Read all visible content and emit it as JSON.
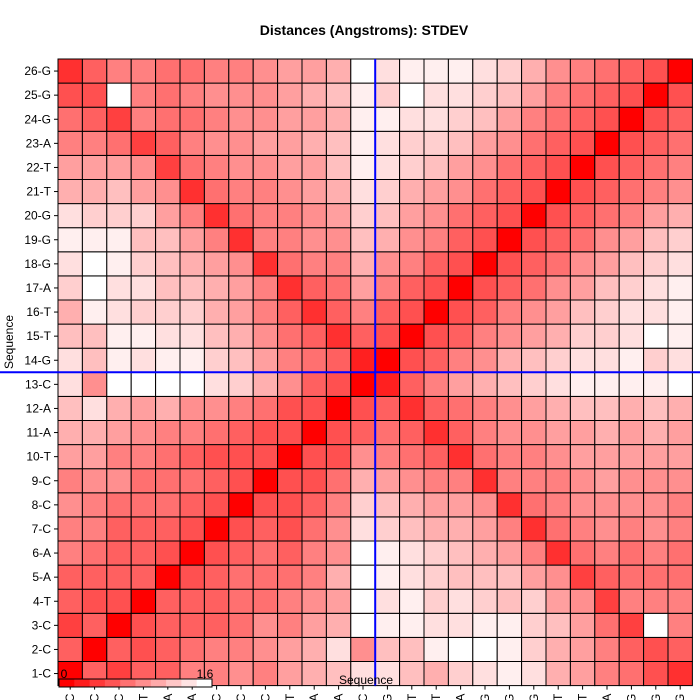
{
  "chart_data": {
    "type": "heatmap",
    "title": "Distances (Angstroms):  STDEV",
    "xlabel": "Sequence",
    "ylabel": "Sequence",
    "labels": [
      "1-C",
      "2-C",
      "3-C",
      "4-T",
      "5-A",
      "6-A",
      "7-C",
      "8-C",
      "9-C",
      "10-T",
      "11-A",
      "12-A",
      "13-C",
      "14-G",
      "15-T",
      "16-T",
      "17-A",
      "18-G",
      "19-G",
      "20-G",
      "21-T",
      "22-T",
      "23-A",
      "24-G",
      "25-G",
      "26-G"
    ],
    "scale": {
      "min": 0,
      "max": 1.6,
      "min_label": "0",
      "max_label": "1.6"
    },
    "colors": {
      "low": "#ff0000",
      "high": "#ffffff",
      "cell_border": "#000000",
      "crosshair": "#0000ff"
    },
    "crosshair": {
      "row": "13-C",
      "column": "13-C"
    },
    "values": [
      [
        0.0,
        0.6,
        0.4,
        0.6,
        0.6,
        0.8,
        0.8,
        0.9,
        0.8,
        1.0,
        1.1,
        1.2,
        1.4,
        1.4,
        1.2,
        1.1,
        1.3,
        1.4,
        1.5,
        1.4,
        1.1,
        1.0,
        0.8,
        0.7,
        0.5,
        0.3
      ],
      [
        0.6,
        0.0,
        0.6,
        0.5,
        0.6,
        0.7,
        0.8,
        0.8,
        0.9,
        1.0,
        1.1,
        1.4,
        0.9,
        1.2,
        1.2,
        1.5,
        1.6,
        1.6,
        1.5,
        1.3,
        1.1,
        1.0,
        0.8,
        0.6,
        0.5,
        0.6
      ],
      [
        0.4,
        0.6,
        0.0,
        0.5,
        0.6,
        0.6,
        0.6,
        0.7,
        0.9,
        0.8,
        1.0,
        1.1,
        1.6,
        1.5,
        1.5,
        1.4,
        1.4,
        1.5,
        1.5,
        1.3,
        1.2,
        1.0,
        0.7,
        0.4,
        1.6,
        0.8
      ],
      [
        0.6,
        0.5,
        0.5,
        0.0,
        0.6,
        0.6,
        0.6,
        0.7,
        0.7,
        0.8,
        0.9,
        1.0,
        1.6,
        1.4,
        1.5,
        1.3,
        1.4,
        1.3,
        1.2,
        1.3,
        1.0,
        0.9,
        0.4,
        0.8,
        0.8,
        0.8
      ],
      [
        0.6,
        0.6,
        0.6,
        0.6,
        0.0,
        0.5,
        0.6,
        0.7,
        0.7,
        0.7,
        0.8,
        1.1,
        1.6,
        1.5,
        1.4,
        1.3,
        1.2,
        1.2,
        1.2,
        1.0,
        0.9,
        0.4,
        0.6,
        0.7,
        0.7,
        0.7
      ],
      [
        0.8,
        0.7,
        0.6,
        0.6,
        0.5,
        0.0,
        0.5,
        0.6,
        0.7,
        0.6,
        0.8,
        0.9,
        1.6,
        1.5,
        1.4,
        1.3,
        1.2,
        1.1,
        1.0,
        0.8,
        0.3,
        0.7,
        0.8,
        0.7,
        0.8,
        0.7
      ],
      [
        0.8,
        0.8,
        0.6,
        0.6,
        0.6,
        0.5,
        0.0,
        0.5,
        0.6,
        0.5,
        0.7,
        0.9,
        1.4,
        1.3,
        1.2,
        1.1,
        1.1,
        1.0,
        0.8,
        0.3,
        0.7,
        0.8,
        0.9,
        0.8,
        0.9,
        0.8
      ],
      [
        0.9,
        0.8,
        0.7,
        0.7,
        0.7,
        0.6,
        0.5,
        0.0,
        0.5,
        0.5,
        0.6,
        0.8,
        1.3,
        1.2,
        1.1,
        1.0,
        1.0,
        0.9,
        0.3,
        0.7,
        0.8,
        0.9,
        0.9,
        0.9,
        0.9,
        0.8
      ],
      [
        0.8,
        0.9,
        0.9,
        0.7,
        0.7,
        0.7,
        0.6,
        0.5,
        0.0,
        0.5,
        0.5,
        0.7,
        1.1,
        1.0,
        0.9,
        0.8,
        0.8,
        0.3,
        0.8,
        0.8,
        0.8,
        0.9,
        1.0,
        0.9,
        0.9,
        0.9
      ],
      [
        1.0,
        1.0,
        0.8,
        0.8,
        0.7,
        0.6,
        0.5,
        0.5,
        0.5,
        0.0,
        0.5,
        0.5,
        0.9,
        0.8,
        0.7,
        0.6,
        0.3,
        0.7,
        0.8,
        0.8,
        0.9,
        1.0,
        1.0,
        1.0,
        1.0,
        1.0
      ],
      [
        1.1,
        1.1,
        1.0,
        0.9,
        0.8,
        0.8,
        0.7,
        0.6,
        0.5,
        0.5,
        0.0,
        0.5,
        0.6,
        0.7,
        0.6,
        0.3,
        0.6,
        0.8,
        0.9,
        0.9,
        1.0,
        1.0,
        1.1,
        1.0,
        1.1,
        1.0
      ],
      [
        1.2,
        1.4,
        1.1,
        1.0,
        1.1,
        0.9,
        0.9,
        0.8,
        0.7,
        0.5,
        0.5,
        0.0,
        0.5,
        0.6,
        0.3,
        0.6,
        0.7,
        0.8,
        0.9,
        1.0,
        1.1,
        1.2,
        1.2,
        1.1,
        1.2,
        1.1
      ],
      [
        1.4,
        0.9,
        1.6,
        1.6,
        1.6,
        1.6,
        1.4,
        1.3,
        1.1,
        0.9,
        0.6,
        0.5,
        0.0,
        0.2,
        0.6,
        0.8,
        1.0,
        1.1,
        1.2,
        1.3,
        1.4,
        1.5,
        1.5,
        1.5,
        1.5,
        1.6
      ],
      [
        1.4,
        1.2,
        1.5,
        1.4,
        1.5,
        1.5,
        1.3,
        1.2,
        1.0,
        0.8,
        0.7,
        0.6,
        0.2,
        0.0,
        0.5,
        0.6,
        0.8,
        0.9,
        1.1,
        1.2,
        1.3,
        1.4,
        1.4,
        1.5,
        1.3,
        1.4
      ],
      [
        1.2,
        1.2,
        1.5,
        1.5,
        1.4,
        1.4,
        1.2,
        1.1,
        0.9,
        0.7,
        0.6,
        0.3,
        0.6,
        0.5,
        0.0,
        0.5,
        0.6,
        0.8,
        0.9,
        1.0,
        1.1,
        1.3,
        1.3,
        1.4,
        1.6,
        1.5
      ],
      [
        1.1,
        1.5,
        1.4,
        1.3,
        1.3,
        1.3,
        1.1,
        1.0,
        0.8,
        0.6,
        0.3,
        0.6,
        0.8,
        0.6,
        0.5,
        0.0,
        0.5,
        0.6,
        0.8,
        0.9,
        1.0,
        1.2,
        1.3,
        1.4,
        1.4,
        1.5
      ],
      [
        1.3,
        1.6,
        1.4,
        1.4,
        1.2,
        1.2,
        1.1,
        1.0,
        0.8,
        0.3,
        0.6,
        0.7,
        1.0,
        0.8,
        0.6,
        0.5,
        0.0,
        0.5,
        0.6,
        0.7,
        0.9,
        1.0,
        1.2,
        1.3,
        1.4,
        1.5
      ],
      [
        1.4,
        1.6,
        1.5,
        1.3,
        1.2,
        1.1,
        1.0,
        0.9,
        0.3,
        0.7,
        0.8,
        0.8,
        1.1,
        0.9,
        0.8,
        0.6,
        0.5,
        0.0,
        0.5,
        0.6,
        0.7,
        0.9,
        1.0,
        1.2,
        1.3,
        1.4
      ],
      [
        1.5,
        1.5,
        1.5,
        1.2,
        1.2,
        1.0,
        0.8,
        0.3,
        0.8,
        0.8,
        0.9,
        0.9,
        1.2,
        1.1,
        0.9,
        0.8,
        0.6,
        0.5,
        0.0,
        0.5,
        0.6,
        0.7,
        0.9,
        1.0,
        1.2,
        1.3
      ],
      [
        1.4,
        1.3,
        1.3,
        1.3,
        1.0,
        0.8,
        0.3,
        0.7,
        0.8,
        0.8,
        0.9,
        1.0,
        1.3,
        1.2,
        1.0,
        0.9,
        0.7,
        0.6,
        0.5,
        0.0,
        0.5,
        0.6,
        0.7,
        0.8,
        1.0,
        1.1
      ],
      [
        1.1,
        1.1,
        1.2,
        1.0,
        0.9,
        0.3,
        0.7,
        0.8,
        0.8,
        0.9,
        1.0,
        1.1,
        1.4,
        1.3,
        1.1,
        1.0,
        0.9,
        0.7,
        0.6,
        0.5,
        0.0,
        0.5,
        0.6,
        0.7,
        0.8,
        0.9
      ],
      [
        1.0,
        1.0,
        1.0,
        0.9,
        0.4,
        0.7,
        0.8,
        0.9,
        0.9,
        1.0,
        1.0,
        1.2,
        1.5,
        1.4,
        1.3,
        1.2,
        1.0,
        0.9,
        0.7,
        0.6,
        0.5,
        0.0,
        0.5,
        0.6,
        0.7,
        0.8
      ],
      [
        0.8,
        0.8,
        0.7,
        0.4,
        0.6,
        0.8,
        0.9,
        0.9,
        1.0,
        1.0,
        1.1,
        1.2,
        1.5,
        1.4,
        1.3,
        1.3,
        1.2,
        1.0,
        0.9,
        0.7,
        0.6,
        0.5,
        0.0,
        0.5,
        0.6,
        0.7
      ],
      [
        0.7,
        0.6,
        0.4,
        0.8,
        0.7,
        0.7,
        0.8,
        0.9,
        0.9,
        1.0,
        1.0,
        1.1,
        1.5,
        1.5,
        1.4,
        1.4,
        1.3,
        1.2,
        1.0,
        0.8,
        0.7,
        0.6,
        0.5,
        0.0,
        0.5,
        0.6
      ],
      [
        0.5,
        0.5,
        1.6,
        0.8,
        0.7,
        0.8,
        0.9,
        0.9,
        0.9,
        1.0,
        1.1,
        1.2,
        1.5,
        1.3,
        1.6,
        1.4,
        1.4,
        1.3,
        1.2,
        1.0,
        0.8,
        0.7,
        0.6,
        0.5,
        0.0,
        0.5
      ],
      [
        0.3,
        0.6,
        0.8,
        0.8,
        0.7,
        0.7,
        0.8,
        0.8,
        0.9,
        1.0,
        1.0,
        1.1,
        1.6,
        1.4,
        1.5,
        1.5,
        1.5,
        1.4,
        1.3,
        1.1,
        0.9,
        0.8,
        0.7,
        0.6,
        0.5,
        0.0
      ]
    ]
  }
}
